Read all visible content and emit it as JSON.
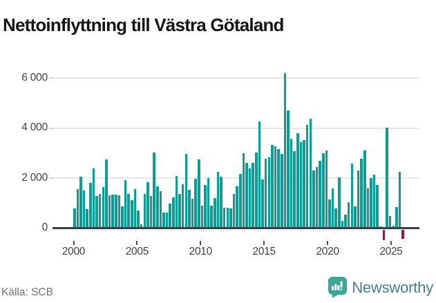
{
  "title": "Nettoinflyttning till Västra Götaland",
  "footer": {
    "source": "Källa: SCB"
  },
  "logo": {
    "text": "Newsworthy",
    "icon": "newsworthy-bubble-chart-icon"
  },
  "colors": {
    "bar_positive": "#0b9d95",
    "bar_negative": "#8f1a52",
    "grid": "#e6e6e6",
    "axis": "#3d3d3d",
    "logo_icon": "#3aa79b",
    "logo_text": "#44808f"
  },
  "chart_data": {
    "type": "bar",
    "title": "Nettoinflyttning till Västra Götaland",
    "xlabel": "",
    "ylabel": "",
    "frequency": "quarterly",
    "start_period": "2000 Q1",
    "end_period": "2025 Q4",
    "grid": "horizontal",
    "legend": "none",
    "ylim": [
      -600,
      6600
    ],
    "x_ticks": [
      2000,
      2005,
      2010,
      2015,
      2020,
      2025
    ],
    "x_tick_labels": [
      "2000",
      "2005",
      "2010",
      "2015",
      "2020",
      "2025"
    ],
    "y_ticks": [
      0,
      2000,
      4000,
      6000
    ],
    "y_tick_labels": [
      "0",
      "2 000",
      "4 000",
      "6 000"
    ],
    "series": [
      {
        "name": "Nettoinflyttning",
        "values": [
          800,
          1550,
          2050,
          1520,
          770,
          1820,
          2400,
          1280,
          1360,
          1640,
          2740,
          1320,
          1340,
          1340,
          1320,
          880,
          1930,
          1360,
          1120,
          1550,
          700,
          150,
          1355,
          1830,
          1280,
          3025,
          1670,
          1490,
          620,
          620,
          995,
          1230,
          2090,
          1380,
          1750,
          2960,
          1535,
          1165,
          1980,
          2745,
          885,
          1720,
          2000,
          885,
          1210,
          2250,
          2050,
          805,
          805,
          780,
          1380,
          1685,
          2165,
          3000,
          2600,
          2400,
          2600,
          3020,
          4260,
          1960,
          2770,
          2835,
          3330,
          3290,
          3170,
          2985,
          6200,
          4720,
          3590,
          3070,
          3815,
          3450,
          3515,
          4135,
          4380,
          2300,
          2450,
          2690,
          3010,
          3110,
          1140,
          1600,
          795,
          2035,
          295,
          540,
          1030,
          2585,
          880,
          2315,
          2780,
          3105,
          1595,
          2000,
          2155,
          1715,
          70,
          -420,
          4030,
          475,
          90,
          835,
          2250,
          -375
        ]
      }
    ]
  }
}
